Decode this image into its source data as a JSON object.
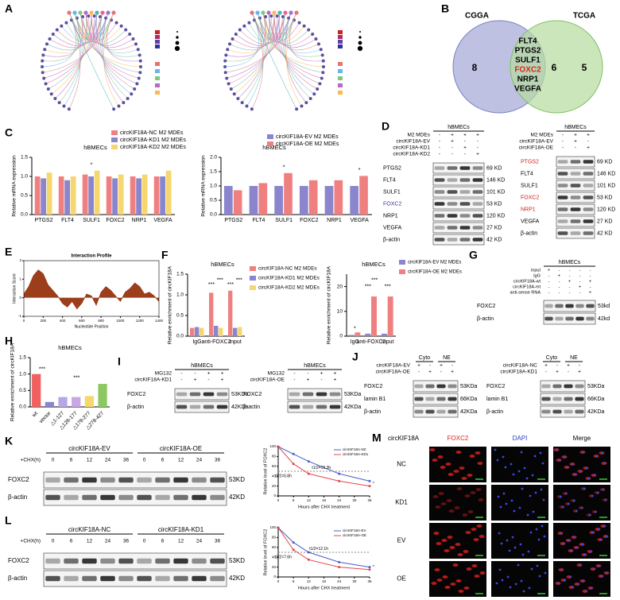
{
  "panel_labels": [
    "A",
    "B",
    "C",
    "D",
    "E",
    "F",
    "G",
    "H",
    "I",
    "J",
    "K",
    "L",
    "M"
  ],
  "venn": {
    "left_label": "CGGA",
    "right_label": "TCGA",
    "left_only": 8,
    "shared": 6,
    "right_only": 5,
    "genes": [
      {
        "label": "FLT4",
        "color": "#000000"
      },
      {
        "label": "PTGS2",
        "color": "#000000"
      },
      {
        "label": "SULF1",
        "color": "#000000"
      },
      {
        "label": "FOXC2",
        "color": "#e02020"
      },
      {
        "label": "NRP1",
        "color": "#000000"
      },
      {
        "label": "VEGFA",
        "color": "#000000"
      }
    ]
  },
  "chart_c1": {
    "type": "bar",
    "title": "hBMECs",
    "y_label": "Relative mRNA expression",
    "categories": [
      "PTGS2",
      "FLT4",
      "SULF1",
      "FOXC2",
      "NRP1",
      "VEGFA"
    ],
    "series": [
      {
        "name": "circKIF18A-NC M2 MDEs",
        "color": "#f08080",
        "values": [
          1.0,
          1.0,
          1.05,
          1.0,
          1.0,
          1.0
        ]
      },
      {
        "name": "circKIF18A-KD1 M2 MDEs",
        "color": "#8a85cc",
        "values": [
          0.95,
          0.9,
          1.0,
          0.95,
          0.95,
          1.0
        ]
      },
      {
        "name": "circKIF18A-KD2 M2 MDEs",
        "color": "#f5d76e",
        "values": [
          1.1,
          1.0,
          1.15,
          1.05,
          1.05,
          1.15
        ]
      }
    ],
    "ylim": [
      0,
      1.5
    ],
    "yticks": [
      {
        "value": 0,
        "label": "0.0"
      },
      {
        "value": 0.5,
        "label": "0.5"
      },
      {
        "value": 1,
        "label": "1.0"
      },
      {
        "value": 1.5,
        "label": "1.5"
      }
    ],
    "annotations": [
      "*"
    ]
  },
  "chart_c2": {
    "type": "bar",
    "title": "hBMECs",
    "y_label": "Relative mRNA expression",
    "categories": [
      "PTGS2",
      "FLT4",
      "SULF1",
      "FOXC2",
      "NRP1",
      "VEGFA"
    ],
    "series": [
      {
        "name": "circKIF18A-EV M2 MDEs",
        "color": "#8a85cc",
        "values": [
          1.0,
          1.0,
          1.0,
          1.0,
          1.0,
          1.0
        ]
      },
      {
        "name": "circKIF18A-OE M2 MDEs",
        "color": "#f08080",
        "values": [
          0.85,
          1.1,
          1.45,
          1.2,
          1.2,
          1.35
        ]
      }
    ],
    "ylim": [
      0,
      2
    ],
    "yticks": [
      {
        "value": 0,
        "label": "0.0"
      },
      {
        "value": 0.5,
        "label": "0.5"
      },
      {
        "value": 1,
        "label": "1.0"
      },
      {
        "value": 1.5,
        "label": "1.5"
      },
      {
        "value": 2,
        "label": "2.0"
      }
    ],
    "annotations": [
      "*",
      "*"
    ]
  },
  "blot_d1": {
    "header": "hBMECs",
    "conditions": [
      {
        "label": "M2 MDEs",
        "signs": [
          "-",
          "+",
          "+",
          "+"
        ]
      },
      {
        "label": "circKIF18A-EV",
        "signs": [
          "-",
          "+",
          "-",
          "-"
        ]
      },
      {
        "label": "circKIF18A-KD1",
        "signs": [
          "-",
          "-",
          "+",
          "-"
        ]
      },
      {
        "label": "circKIF18A-KD2",
        "signs": [
          "-",
          "-",
          "-",
          "+"
        ]
      }
    ],
    "proteins": [
      {
        "name": "PTGS2",
        "size": "69 KD"
      },
      {
        "name": "FLT4",
        "size": "146 KD"
      },
      {
        "name": "SULF1",
        "size": "101 KD"
      },
      {
        "name": "FOXC2",
        "size": "53 KD",
        "color": "#3b3b9e"
      },
      {
        "name": "NRP1",
        "size": "120 KD"
      },
      {
        "name": "VEGFA",
        "size": "27 KD"
      },
      {
        "name": "β-actin",
        "size": "42 KD"
      }
    ]
  },
  "blot_d2": {
    "header": "hBMECs",
    "conditions": [
      {
        "label": "M2 MDEs",
        "signs": [
          "-",
          "+",
          "+"
        ]
      },
      {
        "label": "circKIF18A-EV",
        "signs": [
          "-",
          "+",
          "-"
        ]
      },
      {
        "label": "circKIF18A-OE",
        "signs": [
          "-",
          "-",
          "+"
        ]
      }
    ],
    "proteins": [
      {
        "name": "PTGS2",
        "size": "69 KD",
        "color": "#d42020"
      },
      {
        "name": "FLT4",
        "size": "146 KD"
      },
      {
        "name": "SULF1",
        "size": "101 KD"
      },
      {
        "name": "FOXC2",
        "size": "53 KD",
        "color": "#d42020"
      },
      {
        "name": "NRP1",
        "size": "120 KD",
        "color": "#d42020"
      },
      {
        "name": "VEGFA",
        "size": "27 KD"
      },
      {
        "name": "β-actin",
        "size": "42 KD"
      }
    ]
  },
  "chart_e": {
    "type": "area",
    "title": "Interaction Profile",
    "x_label": "Nucleotide Position",
    "y_label": "Interaction Score",
    "color": "#9c3d1c",
    "x": [
      0,
      50,
      100,
      150,
      200,
      250,
      300,
      350,
      400,
      450,
      500,
      550,
      600,
      650,
      700,
      750,
      800,
      850,
      900,
      950,
      1000,
      1050,
      1100,
      1150,
      1200,
      1250,
      1300,
      1350,
      1400
    ],
    "values": [
      0.2,
      0.6,
      1.2,
      1.5,
      1.3,
      0.7,
      0.4,
      0.1,
      -0.3,
      -0.5,
      -0.2,
      -0.6,
      -0.3,
      0.2,
      0.1,
      -0.4,
      0.3,
      0.6,
      0.4,
      0.1,
      -0.2,
      0.3,
      0.5,
      0.8,
      0.6,
      0.2,
      0.3,
      0.1,
      -0.2
    ],
    "xlim": [
      0,
      1400
    ],
    "xticks": [
      0,
      200,
      400,
      600,
      800,
      1000,
      1200,
      1400
    ],
    "ylim": [
      -1,
      2
    ],
    "yticks": [
      -1,
      0,
      1,
      2
    ]
  },
  "chart_f1": {
    "type": "bar",
    "title": "hBMECs",
    "y_label": "Relative enrichment of circKIF18A",
    "categories": [
      "IgG",
      "anti-FOXC2",
      "Input"
    ],
    "series": [
      {
        "name": "circKIF18A-NC M2 MDEs",
        "color": "#f08080",
        "values": [
          0.2,
          1.05,
          1.1
        ]
      },
      {
        "name": "circKIF18A-KD1 M2 MDEs",
        "color": "#8a85cc",
        "values": [
          0.22,
          0.25,
          0.2
        ]
      },
      {
        "name": "circKIF18A-KD2 M2 MDEs",
        "color": "#f5d76e",
        "values": [
          0.2,
          0.2,
          0.22
        ]
      }
    ],
    "ylim": [
      0,
      1.5
    ],
    "yticks": [
      {
        "value": 0,
        "label": "0.0"
      },
      {
        "value": 0.5,
        "label": "0.5"
      },
      {
        "value": 1,
        "label": "1.0"
      },
      {
        "value": 1.5,
        "label": "1.5"
      }
    ],
    "annotations": [
      "***",
      "***",
      "***",
      "***"
    ]
  },
  "chart_f2": {
    "type": "bar",
    "title": "hBMECs",
    "y_label": "Relative enrichment of circKIF18A",
    "categories": [
      "IgG",
      "anti-FOXC2",
      "Input"
    ],
    "series": [
      {
        "name": "circKIF18A-EV M2 MDEs",
        "color": "#8a85cc",
        "values": [
          0.5,
          1.0,
          1.0
        ]
      },
      {
        "name": "circKIF18A-OE M2 MDEs",
        "color": "#f08080",
        "values": [
          1.5,
          16,
          16
        ]
      }
    ],
    "ylim": [
      0,
      25
    ],
    "yticks": [
      0,
      10,
      20
    ],
    "annotations": [
      "*",
      "***",
      "***",
      "***"
    ]
  },
  "blot_g": {
    "header": "hBMECs",
    "conditions": [
      {
        "label": "input",
        "signs": [
          "+",
          "-",
          "-",
          "-",
          "-"
        ]
      },
      {
        "label": "IgG",
        "signs": [
          "-",
          "+",
          "-",
          "-",
          "-"
        ]
      },
      {
        "label": "circKIF18A-wt",
        "signs": [
          "-",
          "-",
          "+",
          "-",
          "+"
        ]
      },
      {
        "label": "circKIF18A-mt",
        "signs": [
          "-",
          "-",
          "-",
          "+",
          "-"
        ]
      },
      {
        "label": "anti-sense RNA",
        "signs": [
          "-",
          "-",
          "-",
          "-",
          "+"
        ]
      }
    ],
    "proteins": [
      {
        "name": "FOXC2",
        "size": "53kd"
      },
      {
        "name": "β-actin",
        "size": "42kd"
      }
    ]
  },
  "chart_h": {
    "type": "bar",
    "title": "hBMECs",
    "y_label": "Relative enrichment of circKIF18A",
    "categories": [
      "wt",
      "vector",
      "△1-127",
      "△128-177",
      "△178-277",
      "△278-427"
    ],
    "values": [
      1.0,
      0.15,
      0.3,
      0.3,
      0.33,
      0.7
    ],
    "colors": [
      "#f06060",
      "#8a85cc",
      "#b9a6e6",
      "#c9a6e6",
      "#f5d76e",
      "#8cc860"
    ],
    "ylim": [
      0,
      1.5
    ],
    "yticks": [
      {
        "value": 0,
        "label": "0.0"
      },
      {
        "value": 0.5,
        "label": "0.5"
      },
      {
        "value": 1,
        "label": "1.0"
      },
      {
        "value": 1.5,
        "label": "1.5"
      }
    ],
    "annotations": [
      "***",
      "***"
    ]
  },
  "blot_i1": {
    "header": "hBMECs",
    "conditions": [
      {
        "label": "MG132",
        "signs": [
          "-",
          "-",
          "+",
          "+"
        ]
      },
      {
        "label": "circKIF18A-KD1",
        "signs": [
          "-",
          "+",
          "-",
          "+"
        ]
      }
    ],
    "proteins": [
      {
        "name": "FOXC2",
        "size": "53KDa"
      },
      {
        "name": "β-actin",
        "size": "42KDa"
      }
    ]
  },
  "blot_i2": {
    "header": "hBMECs",
    "conditions": [
      {
        "label": "MG132",
        "signs": [
          "-",
          "-",
          "+",
          "+"
        ]
      },
      {
        "label": "circKIF18A-OE",
        "signs": [
          "-",
          "+",
          "-",
          "+"
        ]
      }
    ],
    "proteins": [
      {
        "name": "FOXC2",
        "size": "53KDa"
      },
      {
        "name": "β-actin",
        "size": "42KDa"
      }
    ]
  },
  "blot_j1": {
    "groups": [
      "Cyto",
      "NE"
    ],
    "conditions": [
      {
        "label": "circKIF18A-EV",
        "signs": [
          "+",
          "-",
          "+",
          "-"
        ]
      },
      {
        "label": "circKIF18A-OE",
        "signs": [
          "-",
          "+",
          "-",
          "+"
        ]
      }
    ],
    "proteins": [
      {
        "name": "FOXC2",
        "size": "53KDa"
      },
      {
        "name": "lamin B1",
        "size": "66KDa"
      },
      {
        "name": "β-actin",
        "size": "42KDa"
      }
    ]
  },
  "blot_j2": {
    "groups": [
      "Cyto",
      "NE"
    ],
    "conditions": [
      {
        "label": "circKIF18A-NC",
        "signs": [
          "+",
          "-",
          "+",
          "-"
        ]
      },
      {
        "label": "circKIF18A-KD1",
        "signs": [
          "-",
          "+",
          "-",
          "+"
        ]
      }
    ],
    "proteins": [
      {
        "name": "FOXC2",
        "size": "53KDa"
      },
      {
        "name": "lamin B1",
        "size": "66KDa"
      },
      {
        "name": "β-actin",
        "size": "42KDa"
      }
    ]
  },
  "blot_k": {
    "groups": [
      "circKIF18A-EV",
      "circKIF18A-OE"
    ],
    "conditions": [
      {
        "label": "+CHX(h)",
        "signs": [
          "0",
          "6",
          "12",
          "24",
          "36",
          "0",
          "6",
          "12",
          "24",
          "36"
        ]
      }
    ],
    "proteins": [
      {
        "name": "FOXC2",
        "size": "53KD"
      },
      {
        "name": "β-actin",
        "size": "42KD"
      }
    ]
  },
  "chart_k": {
    "type": "line",
    "x_label": "Hours after CHX treatment",
    "y_label": "Relative level of FOXC2",
    "x": [
      0,
      6,
      12,
      24,
      36
    ],
    "series": [
      {
        "name": "circKIF18A-NC",
        "color": "#4a5cc8",
        "values": [
          100,
          85,
          70,
          45,
          30
        ]
      },
      {
        "name": "circKIF18A-KD1",
        "color": "#e04848",
        "values": [
          100,
          65,
          45,
          30,
          20
        ]
      }
    ],
    "xlim": [
      0,
      36
    ],
    "xticks": [
      0,
      6,
      12,
      18,
      24,
      30,
      36
    ],
    "ylim": [
      0,
      100
    ],
    "yticks": [
      0,
      20,
      40,
      60,
      80,
      100
    ],
    "annotations": [
      "t1/2=6.8h",
      "t1/2=15.3h",
      "*"
    ]
  },
  "blot_l": {
    "groups": [
      "circKIF18A-NC",
      "circKIF18A-KD1"
    ],
    "conditions": [
      {
        "label": "+CHX(h)",
        "signs": [
          "0",
          "6",
          "12",
          "24",
          "36",
          "0",
          "6",
          "12",
          "24",
          "36"
        ]
      }
    ],
    "proteins": [
      {
        "name": "FOXC2",
        "size": "53KD"
      },
      {
        "name": "β-actin",
        "size": "42KD"
      }
    ]
  },
  "chart_l": {
    "type": "line",
    "x_label": "Hours after CHX treatment",
    "y_label": "Relative level of FOXC2",
    "x": [
      0,
      6,
      12,
      24,
      36
    ],
    "series": [
      {
        "name": "circKIF18A-EV",
        "color": "#4a5cc8",
        "values": [
          100,
          70,
          50,
          30,
          20
        ]
      },
      {
        "name": "circKIF18A-OE",
        "color": "#e04848",
        "values": [
          100,
          55,
          35,
          20,
          15
        ]
      }
    ],
    "xlim": [
      0,
      36
    ],
    "xticks": [
      0,
      6,
      12,
      18,
      24,
      30,
      36
    ],
    "ylim": [
      0,
      100
    ],
    "yticks": [
      0,
      20,
      40,
      60,
      80,
      100
    ],
    "annotations": [
      "t1/2=7.6h",
      "t1/2=12.1h",
      "*"
    ]
  },
  "panel_m": {
    "header": "circKIF18A",
    "columns": [
      {
        "label": "FOXC2",
        "color": "#e02020"
      },
      {
        "label": "DAPI",
        "color": "#3040c0"
      },
      {
        "label": "Merge",
        "color": "#000000"
      }
    ],
    "rows": [
      "NC",
      "KD1",
      "EV",
      "OE"
    ]
  }
}
